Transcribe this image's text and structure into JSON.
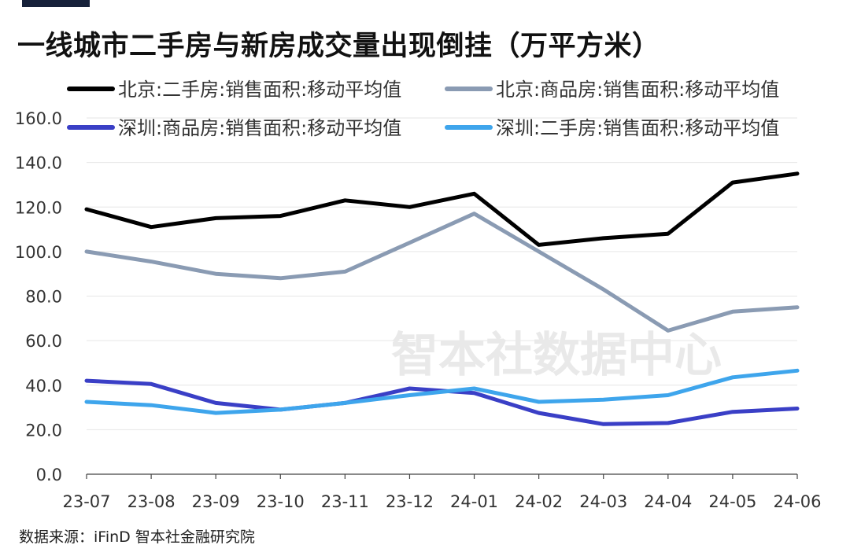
{
  "title": "一线城市二手房与新房成交量出现倒挂（万平方米）",
  "source": "数据来源：iFinD 智本社金融研究院",
  "watermark": "智本社数据中心",
  "chart_data": {
    "type": "line",
    "categories": [
      "23-07",
      "23-08",
      "23-09",
      "23-10",
      "23-11",
      "23-12",
      "24-01",
      "24-02",
      "24-03",
      "24-04",
      "24-05",
      "24-06"
    ],
    "y_ticks": [
      "0.0",
      "20.0",
      "40.0",
      "60.0",
      "80.0",
      "100.0",
      "120.0",
      "140.0",
      "160.0"
    ],
    "ylim": [
      0,
      160
    ],
    "grid": true,
    "legend_position": "top",
    "series": [
      {
        "name": "北京:二手房:销售面积:移动平均值",
        "color": "#000000",
        "values": [
          119,
          111,
          115,
          116,
          123,
          120,
          126,
          103,
          106,
          108,
          131,
          135
        ]
      },
      {
        "name": "北京:商品房:销售面积:移动平均值",
        "color": "#8a9bb3",
        "values": [
          100,
          95.5,
          90,
          88,
          91,
          104,
          117,
          100,
          83,
          64.5,
          73,
          75
        ]
      },
      {
        "name": "深圳:商品房:销售面积:移动平均值",
        "color": "#3a3fc6",
        "values": [
          42,
          40.5,
          32,
          29,
          32,
          38.5,
          36.5,
          27.5,
          22.5,
          23,
          28,
          29.5
        ]
      },
      {
        "name": "深圳:二手房:销售面积:移动平均值",
        "color": "#3ea5ec",
        "values": [
          32.5,
          31,
          27.5,
          29,
          32,
          35.5,
          38.5,
          32.5,
          33.5,
          35.5,
          43.5,
          46.5
        ]
      }
    ]
  }
}
